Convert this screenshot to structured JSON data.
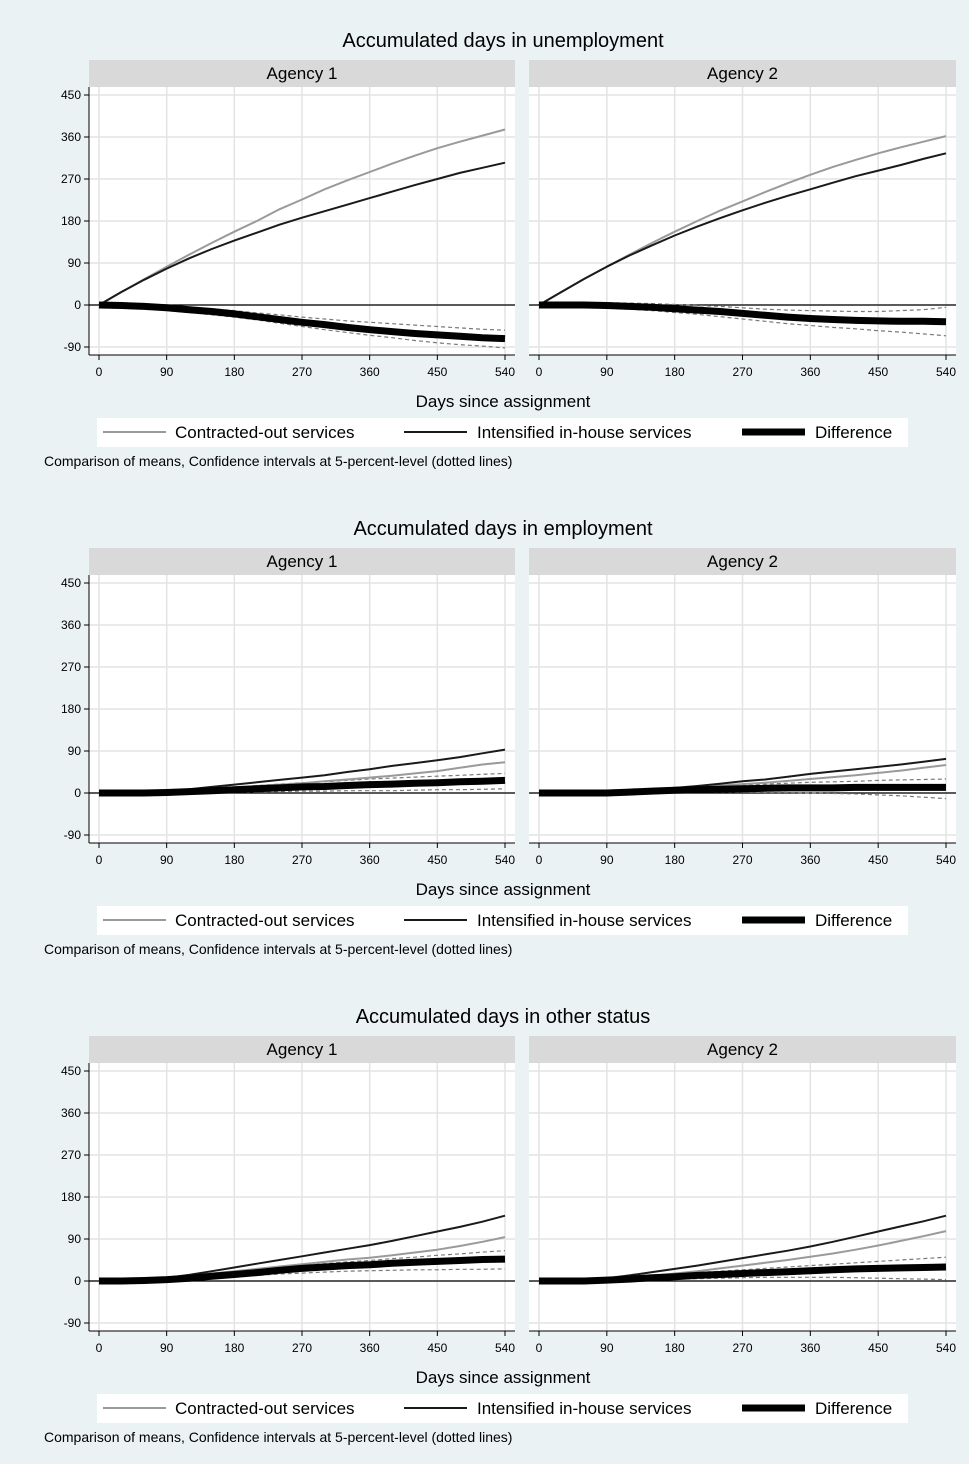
{
  "figure": {
    "note": "Comparison of means, Confidence intervals at 5-percent-level (dotted lines)",
    "legend": [
      "Contracted-out services",
      "Intensified in-house services",
      "Difference"
    ],
    "colors": {
      "contracted": "#9a9a9a",
      "inhouse": "#1a1a1a",
      "difference": "#000000",
      "ci": "#7a7a7a",
      "panel_header": "#d9d9d9",
      "background": "#eaf2f3"
    }
  },
  "chart_data": [
    {
      "type": "line",
      "title": "Accumulated days in unemployment",
      "xlabel": "Days since assignment",
      "ylabel": "",
      "xlim": [
        0,
        540
      ],
      "ylim": [
        -90,
        450
      ],
      "xticks": [
        0,
        90,
        180,
        270,
        360,
        450,
        540
      ],
      "yticks": [
        -90,
        0,
        90,
        180,
        270,
        360,
        450
      ],
      "grid": true,
      "legend_position": "bottom",
      "panels": [
        {
          "name": "Agency 1",
          "x": [
            0,
            30,
            60,
            90,
            120,
            150,
            180,
            210,
            240,
            270,
            300,
            330,
            360,
            390,
            420,
            450,
            480,
            510,
            540
          ],
          "series": [
            {
              "name": "Contracted-out services",
              "values": [
                0,
                28,
                55,
                82,
                108,
                133,
                157,
                180,
                205,
                226,
                248,
                267,
                285,
                303,
                320,
                336,
                350,
                363,
                376
              ]
            },
            {
              "name": "Intensified in-house services",
              "values": [
                0,
                28,
                54,
                78,
                100,
                120,
                138,
                155,
                172,
                187,
                201,
                215,
                229,
                243,
                257,
                270,
                283,
                294,
                305
              ]
            },
            {
              "name": "Difference",
              "values": [
                0,
                -1,
                -3,
                -6,
                -10,
                -14,
                -19,
                -25,
                -31,
                -37,
                -42,
                -48,
                -53,
                -57,
                -61,
                -64,
                -67,
                -70,
                -72
              ]
            },
            {
              "name": "CI upper",
              "values": [
                4,
                3,
                2,
                0,
                -4,
                -8,
                -12,
                -17,
                -21,
                -26,
                -30,
                -34,
                -37,
                -40,
                -43,
                -46,
                -49,
                -52,
                -54
              ]
            },
            {
              "name": "CI lower",
              "values": [
                -3,
                -5,
                -8,
                -12,
                -16,
                -21,
                -26,
                -32,
                -39,
                -46,
                -53,
                -59,
                -65,
                -70,
                -76,
                -81,
                -85,
                -88,
                -92
              ]
            }
          ]
        },
        {
          "name": "Agency 2",
          "x": [
            0,
            30,
            60,
            90,
            120,
            150,
            180,
            210,
            240,
            270,
            300,
            330,
            360,
            390,
            420,
            450,
            480,
            510,
            540
          ],
          "series": [
            {
              "name": "Contracted-out services",
              "values": [
                0,
                28,
                56,
                82,
                108,
                133,
                157,
                180,
                202,
                222,
                242,
                261,
                279,
                296,
                311,
                325,
                338,
                350,
                362
              ]
            },
            {
              "name": "Intensified in-house services",
              "values": [
                0,
                28,
                56,
                82,
                106,
                128,
                149,
                168,
                186,
                203,
                219,
                234,
                248,
                262,
                276,
                288,
                300,
                313,
                325
              ]
            },
            {
              "name": "Difference",
              "values": [
                0,
                0,
                0,
                -1,
                -3,
                -5,
                -8,
                -11,
                -14,
                -18,
                -22,
                -26,
                -29,
                -31,
                -33,
                -34,
                -35,
                -35,
                -36
              ]
            },
            {
              "name": "CI upper",
              "values": [
                5,
                5,
                5,
                5,
                4,
                3,
                1,
                -1,
                -3,
                -6,
                -9,
                -11,
                -12,
                -13,
                -14,
                -14,
                -12,
                -10,
                -5
              ]
            },
            {
              "name": "CI lower",
              "values": [
                -4,
                -4,
                -5,
                -7,
                -9,
                -12,
                -16,
                -20,
                -25,
                -30,
                -35,
                -40,
                -44,
                -48,
                -51,
                -55,
                -58,
                -62,
                -66
              ]
            }
          ]
        }
      ]
    },
    {
      "type": "line",
      "title": "Accumulated days in employment",
      "xlabel": "Days since assignment",
      "ylabel": "",
      "xlim": [
        0,
        540
      ],
      "ylim": [
        -90,
        450
      ],
      "xticks": [
        0,
        90,
        180,
        270,
        360,
        450,
        540
      ],
      "yticks": [
        -90,
        0,
        90,
        180,
        270,
        360,
        450
      ],
      "grid": true,
      "legend_position": "bottom",
      "panels": [
        {
          "name": "Agency 1",
          "x": [
            0,
            30,
            60,
            90,
            120,
            150,
            180,
            210,
            240,
            270,
            300,
            330,
            360,
            390,
            420,
            450,
            480,
            510,
            540
          ],
          "series": [
            {
              "name": "Contracted-out services",
              "values": [
                0,
                0,
                1,
                3,
                6,
                9,
                12,
                15,
                18,
                21,
                25,
                29,
                33,
                37,
                42,
                47,
                54,
                61,
                66
              ]
            },
            {
              "name": "Intensified in-house services",
              "values": [
                0,
                0,
                1,
                4,
                8,
                13,
                18,
                23,
                28,
                33,
                38,
                45,
                51,
                58,
                64,
                70,
                77,
                85,
                93
              ]
            },
            {
              "name": "Difference",
              "values": [
                0,
                0,
                0,
                1,
                3,
                5,
                7,
                9,
                11,
                13,
                14,
                16,
                18,
                19,
                21,
                22,
                24,
                25,
                27
              ]
            },
            {
              "name": "CI upper",
              "values": [
                4,
                3,
                3,
                5,
                7,
                10,
                13,
                16,
                19,
                22,
                24,
                27,
                30,
                32,
                34,
                36,
                38,
                40,
                42
              ]
            },
            {
              "name": "CI lower",
              "values": [
                -3,
                -3,
                -3,
                -2,
                -1,
                0,
                1,
                2,
                3,
                4,
                4,
                5,
                5,
                5,
                6,
                7,
                7,
                8,
                9
              ]
            }
          ]
        },
        {
          "name": "Agency 2",
          "x": [
            0,
            30,
            60,
            90,
            120,
            150,
            180,
            210,
            240,
            270,
            300,
            330,
            360,
            390,
            420,
            450,
            480,
            510,
            540
          ],
          "series": [
            {
              "name": "Contracted-out services",
              "values": [
                0,
                0,
                0,
                2,
                5,
                7,
                10,
                13,
                16,
                19,
                22,
                26,
                30,
                34,
                38,
                43,
                48,
                54,
                60
              ]
            },
            {
              "name": "Intensified in-house services",
              "values": [
                0,
                0,
                0,
                2,
                5,
                8,
                11,
                15,
                20,
                25,
                29,
                35,
                41,
                46,
                51,
                56,
                61,
                67,
                73
              ]
            },
            {
              "name": "Difference",
              "values": [
                0,
                0,
                0,
                0,
                2,
                4,
                6,
                7,
                8,
                9,
                10,
                11,
                11,
                11,
                12,
                12,
                12,
                12,
                12
              ]
            },
            {
              "name": "CI upper",
              "values": [
                5,
                3,
                3,
                4,
                6,
                8,
                11,
                13,
                15,
                17,
                19,
                21,
                23,
                24,
                25,
                27,
                28,
                29,
                30
              ]
            },
            {
              "name": "CI lower",
              "values": [
                -4,
                -4,
                -4,
                -4,
                -3,
                -1,
                1,
                2,
                2,
                2,
                1,
                1,
                0,
                -1,
                -2,
                -4,
                -6,
                -9,
                -12
              ]
            }
          ]
        }
      ]
    },
    {
      "type": "line",
      "title": "Accumulated days in other status",
      "xlabel": "Days since assignment",
      "ylabel": "",
      "xlim": [
        0,
        540
      ],
      "ylim": [
        -90,
        450
      ],
      "xticks": [
        0,
        90,
        180,
        270,
        360,
        450,
        540
      ],
      "yticks": [
        -90,
        0,
        90,
        180,
        270,
        360,
        450
      ],
      "grid": true,
      "legend_position": "bottom",
      "panels": [
        {
          "name": "Agency 1",
          "x": [
            0,
            30,
            60,
            90,
            120,
            150,
            180,
            210,
            240,
            270,
            300,
            330,
            360,
            390,
            420,
            450,
            480,
            510,
            540
          ],
          "series": [
            {
              "name": "Contracted-out services",
              "values": [
                0,
                0,
                2,
                5,
                10,
                16,
                21,
                26,
                31,
                36,
                41,
                46,
                50,
                55,
                61,
                67,
                75,
                84,
                94
              ]
            },
            {
              "name": "Intensified in-house services",
              "values": [
                0,
                0,
                2,
                7,
                13,
                21,
                29,
                37,
                45,
                53,
                61,
                69,
                77,
                86,
                96,
                106,
                116,
                127,
                140
              ]
            },
            {
              "name": "Difference",
              "values": [
                0,
                0,
                1,
                3,
                6,
                10,
                14,
                18,
                23,
                27,
                30,
                33,
                35,
                38,
                40,
                42,
                44,
                46,
                47
              ]
            },
            {
              "name": "CI upper",
              "values": [
                4,
                3,
                4,
                6,
                9,
                13,
                18,
                23,
                28,
                33,
                37,
                41,
                44,
                48,
                51,
                55,
                58,
                62,
                65
              ]
            },
            {
              "name": "CI lower",
              "values": [
                -3,
                -3,
                -2,
                0,
                3,
                6,
                9,
                12,
                15,
                17,
                19,
                21,
                22,
                23,
                24,
                24,
                25,
                25,
                26
              ]
            }
          ]
        },
        {
          "name": "Agency 2",
          "x": [
            0,
            30,
            60,
            90,
            120,
            150,
            180,
            210,
            240,
            270,
            300,
            330,
            360,
            390,
            420,
            450,
            480,
            510,
            540
          ],
          "series": [
            {
              "name": "Contracted-out services",
              "values": [
                0,
                0,
                1,
                3,
                7,
                11,
                16,
                21,
                27,
                33,
                39,
                45,
                52,
                59,
                67,
                76,
                86,
                96,
                107
              ]
            },
            {
              "name": "Intensified in-house services",
              "values": [
                0,
                0,
                2,
                6,
                12,
                19,
                26,
                33,
                41,
                49,
                57,
                65,
                74,
                84,
                95,
                106,
                117,
                128,
                140
              ]
            },
            {
              "name": "Difference",
              "values": [
                0,
                0,
                0,
                2,
                4,
                7,
                9,
                12,
                14,
                16,
                18,
                20,
                22,
                24,
                26,
                27,
                28,
                29,
                30
              ]
            },
            {
              "name": "CI upper",
              "values": [
                5,
                4,
                4,
                6,
                8,
                11,
                14,
                18,
                21,
                24,
                27,
                30,
                33,
                36,
                39,
                42,
                45,
                48,
                51
              ]
            },
            {
              "name": "CI lower",
              "values": [
                -4,
                -4,
                -3,
                -2,
                0,
                2,
                4,
                5,
                6,
                7,
                8,
                8,
                8,
                8,
                7,
                6,
                5,
                4,
                3
              ]
            }
          ]
        }
      ]
    }
  ]
}
